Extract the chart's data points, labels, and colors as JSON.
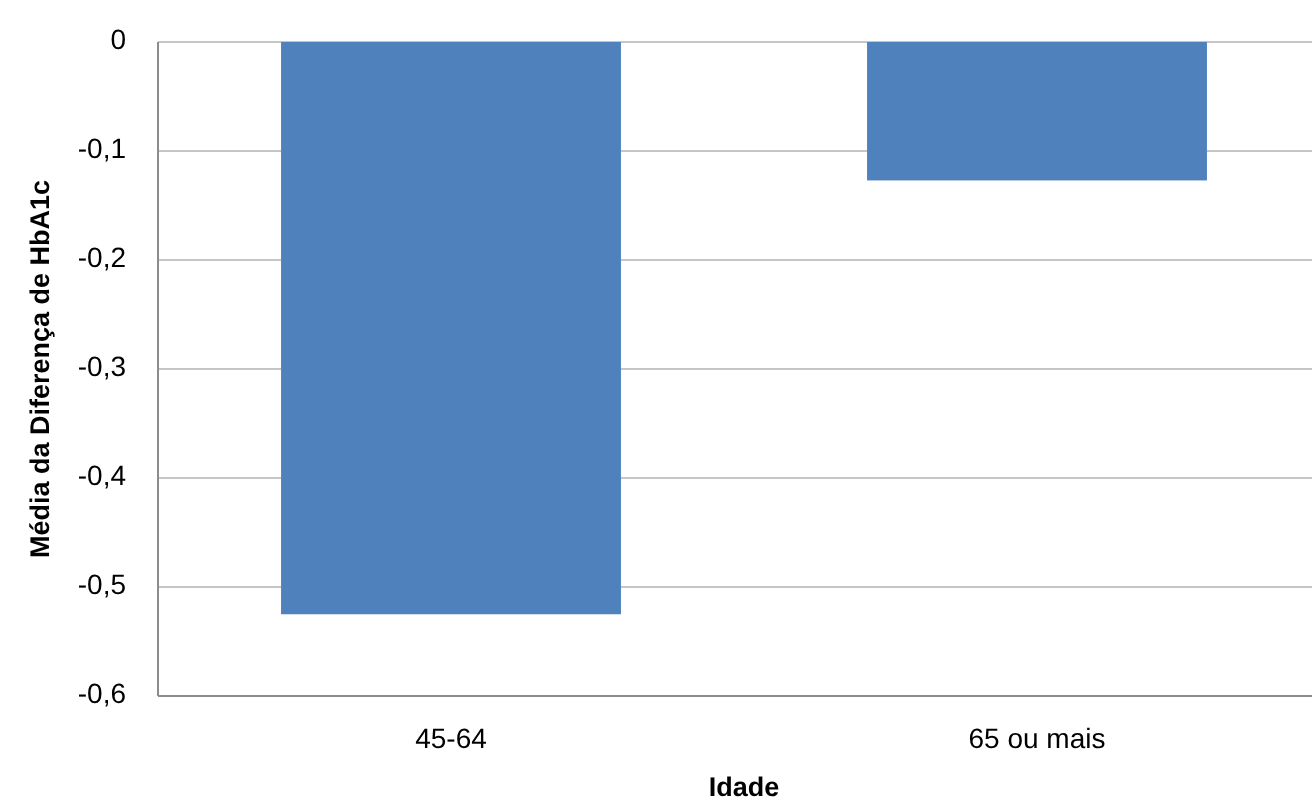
{
  "chart_data": {
    "type": "bar",
    "xlabel": "Idade",
    "ylabel": "Média da Diferença de HbA1c",
    "categories": [
      "45-64",
      "65 ou mais"
    ],
    "values": [
      -0.525,
      -0.127
    ],
    "color": "#4f81bd",
    "ylim": [
      -0.6,
      0
    ],
    "yticks": [
      {
        "value": -0.6,
        "label": "-0,6"
      },
      {
        "value": -0.5,
        "label": "-0,5"
      },
      {
        "value": -0.4,
        "label": "-0,4"
      },
      {
        "value": -0.3,
        "label": "-0,3"
      },
      {
        "value": -0.2,
        "label": "-0,2"
      },
      {
        "value": -0.1,
        "label": "-0,1"
      },
      0
    ],
    "grid": "y"
  }
}
